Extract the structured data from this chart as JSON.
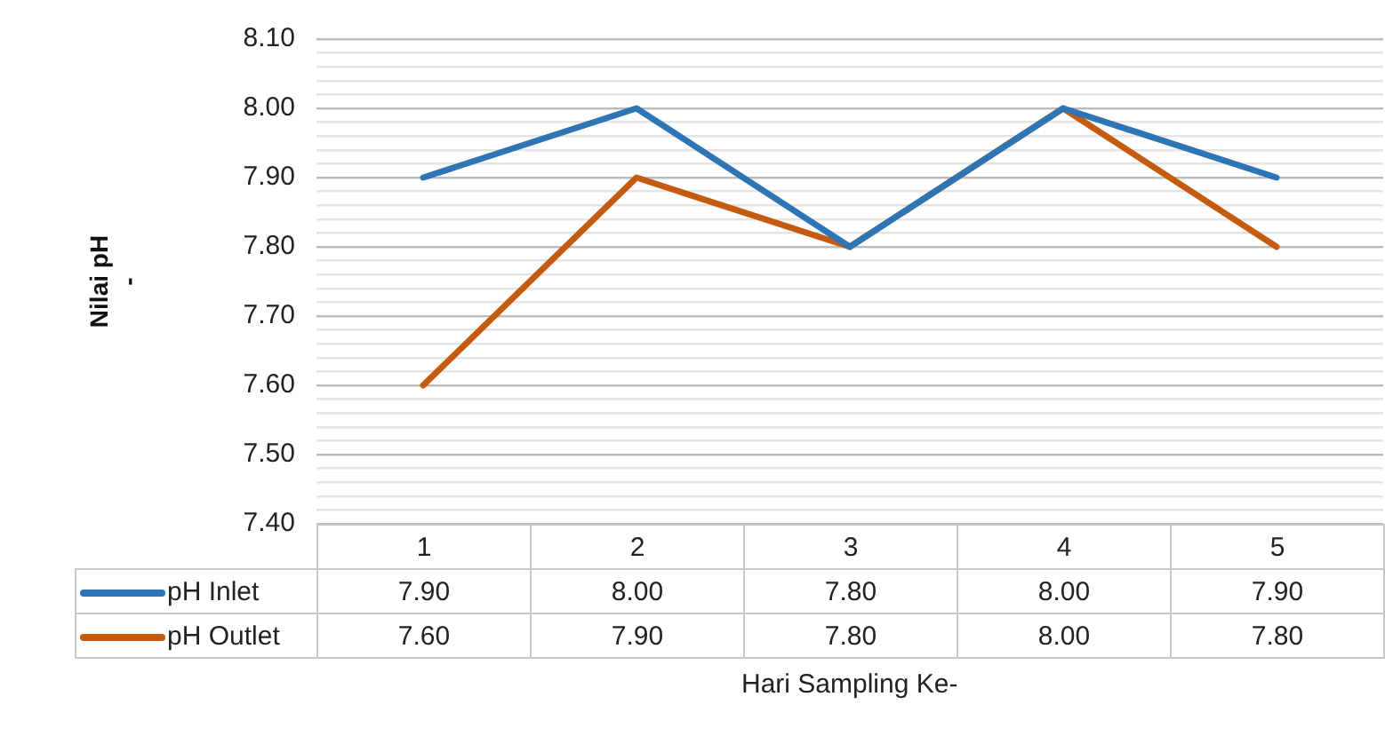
{
  "chart_data": {
    "type": "line",
    "xlabel": "Hari Sampling Ke-",
    "ylabel": "Nilai pH\n-",
    "categories": [
      "1",
      "2",
      "3",
      "4",
      "5"
    ],
    "series": [
      {
        "name": "pH Inlet",
        "color": "#2e75b6",
        "values": [
          7.9,
          8.0,
          7.8,
          8.0,
          7.9
        ],
        "value_labels": [
          "7.90",
          "8.00",
          "7.80",
          "8.00",
          "7.90"
        ]
      },
      {
        "name": "pH Outlet",
        "color": "#c55a11",
        "values": [
          7.6,
          7.9,
          7.8,
          8.0,
          7.8
        ],
        "value_labels": [
          "7.60",
          "7.90",
          "7.80",
          "8.00",
          "7.80"
        ]
      }
    ],
    "ylim": [
      7.4,
      8.1
    ],
    "yticks": [
      {
        "value": 7.4,
        "label": "7.40"
      },
      {
        "value": 7.42,
        "label": null
      },
      {
        "value": 7.44,
        "label": null
      },
      {
        "value": 7.46,
        "label": null
      },
      {
        "value": 7.48,
        "label": null
      },
      {
        "value": 7.5,
        "label": "7.50"
      },
      {
        "value": 7.52,
        "label": null
      },
      {
        "value": 7.54,
        "label": null
      },
      {
        "value": 7.56,
        "label": null
      },
      {
        "value": 7.58,
        "label": null
      },
      {
        "value": 7.6,
        "label": "7.60"
      },
      {
        "value": 7.62,
        "label": null
      },
      {
        "value": 7.64,
        "label": null
      },
      {
        "value": 7.66,
        "label": null
      },
      {
        "value": 7.68,
        "label": null
      },
      {
        "value": 7.7,
        "label": "7.70"
      },
      {
        "value": 7.72,
        "label": null
      },
      {
        "value": 7.74,
        "label": null
      },
      {
        "value": 7.76,
        "label": null
      },
      {
        "value": 7.78,
        "label": null
      },
      {
        "value": 7.8,
        "label": "7.80"
      },
      {
        "value": 7.82,
        "label": null
      },
      {
        "value": 7.84,
        "label": null
      },
      {
        "value": 7.86,
        "label": null
      },
      {
        "value": 7.88,
        "label": null
      },
      {
        "value": 7.9,
        "label": "7.90"
      },
      {
        "value": 7.92,
        "label": null
      },
      {
        "value": 7.94,
        "label": null
      },
      {
        "value": 7.96,
        "label": null
      },
      {
        "value": 7.98,
        "label": null
      },
      {
        "value": 8.0,
        "label": "8.00"
      },
      {
        "value": 8.02,
        "label": null
      },
      {
        "value": 8.04,
        "label": null
      },
      {
        "value": 8.06,
        "label": null
      },
      {
        "value": 8.08,
        "label": null
      },
      {
        "value": 8.1,
        "label": "8.10"
      }
    ],
    "grid": "y",
    "legend": "bottom left",
    "marker": "none",
    "line_style": "solid"
  }
}
